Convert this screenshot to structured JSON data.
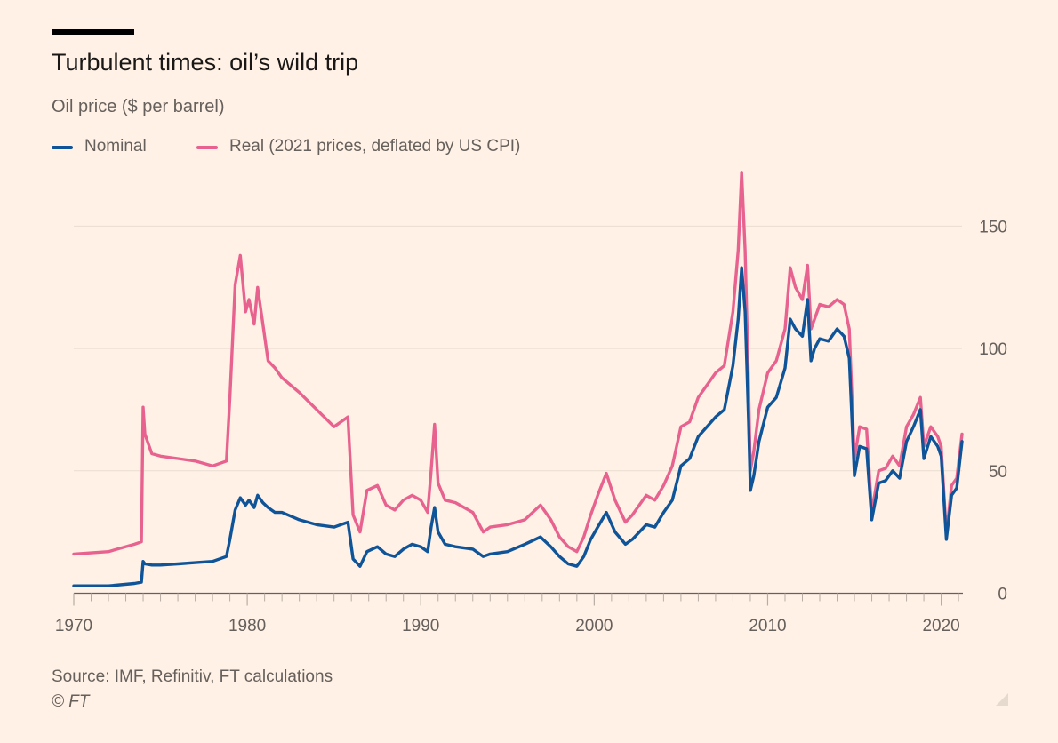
{
  "title": "Turbulent times: oil’s wild trip",
  "subtitle": "Oil price ($ per barrel)",
  "legend": [
    {
      "label": "Nominal",
      "color": "#0F5499"
    },
    {
      "label": "Real (2021 prices, deflated by US CPI)",
      "color": "#E8628F"
    }
  ],
  "source": "Source: IMF, Refinitiv, FT calculations",
  "copyright": "© FT",
  "chart_data": {
    "type": "line",
    "xlim": [
      1970,
      2021.2
    ],
    "ylim": [
      0,
      175
    ],
    "grid": true,
    "y_ticks": [
      0,
      50,
      100,
      150
    ],
    "x_ticks": [
      1970,
      1980,
      1990,
      2000,
      2010,
      2020
    ],
    "series": [
      {
        "name": "Nominal",
        "color": "#0F5499",
        "x": [
          1970,
          1972,
          1973.5,
          1973.9,
          1974.0,
          1974.1,
          1974.5,
          1975,
          1976,
          1977,
          1978,
          1978.8,
          1979.0,
          1979.3,
          1979.6,
          1979.9,
          1980.1,
          1980.4,
          1980.6,
          1980.9,
          1981.2,
          1981.6,
          1982,
          1983,
          1984,
          1985,
          1985.8,
          1986.1,
          1986.5,
          1986.9,
          1987.5,
          1988,
          1988.5,
          1989,
          1989.5,
          1990.0,
          1990.4,
          1990.6,
          1990.8,
          1991.0,
          1991.4,
          1992,
          1993,
          1993.6,
          1994,
          1995,
          1996,
          1996.9,
          1997.5,
          1998,
          1998.5,
          1999.0,
          1999.4,
          1999.8,
          2000.2,
          2000.7,
          2001.2,
          2001.8,
          2002.2,
          2003,
          2003.5,
          2004,
          2004.5,
          2005,
          2005.5,
          2006,
          2006.5,
          2007,
          2007.5,
          2008.0,
          2008.3,
          2008.5,
          2008.7,
          2008.9,
          2009.0,
          2009.2,
          2009.5,
          2010,
          2010.5,
          2011.0,
          2011.3,
          2011.6,
          2012.0,
          2012.3,
          2012.5,
          2012.7,
          2013,
          2013.5,
          2014,
          2014.4,
          2014.7,
          2015.0,
          2015.3,
          2015.7,
          2016.0,
          2016.4,
          2016.8,
          2017.2,
          2017.6,
          2018.0,
          2018.4,
          2018.8,
          2019.0,
          2019.4,
          2019.8,
          2020.0,
          2020.3,
          2020.6,
          2020.9,
          2021.2
        ],
        "values": [
          3,
          3,
          4,
          4.5,
          13,
          12,
          11.5,
          11.5,
          12,
          12.5,
          13,
          15,
          22,
          34,
          39,
          36,
          38,
          35,
          40,
          37,
          35,
          33,
          33,
          30,
          28,
          27,
          29,
          14,
          11,
          17,
          19,
          16,
          15,
          18,
          20,
          19,
          17,
          27,
          35,
          25,
          20,
          19,
          18,
          15,
          16,
          17,
          20,
          23,
          19,
          15,
          12,
          11,
          15,
          22,
          27,
          33,
          25,
          20,
          22,
          28,
          27,
          33,
          38,
          52,
          55,
          64,
          68,
          72,
          75,
          93,
          112,
          133,
          115,
          70,
          42,
          48,
          62,
          76,
          80,
          92,
          112,
          108,
          105,
          120,
          95,
          100,
          104,
          103,
          108,
          105,
          96,
          48,
          60,
          59,
          30,
          45,
          46,
          50,
          47,
          62,
          68,
          75,
          55,
          64,
          60,
          56,
          22,
          40,
          43,
          62
        ]
      },
      {
        "name": "Real (2021 prices, deflated by US CPI)",
        "color": "#E8628F",
        "x": [
          1970,
          1972,
          1973.5,
          1973.9,
          1974.0,
          1974.1,
          1974.5,
          1975,
          1976,
          1977,
          1978,
          1978.8,
          1979.0,
          1979.3,
          1979.6,
          1979.9,
          1980.1,
          1980.4,
          1980.6,
          1980.9,
          1981.2,
          1981.6,
          1982,
          1983,
          1984,
          1985,
          1985.8,
          1986.1,
          1986.5,
          1986.9,
          1987.5,
          1988,
          1988.5,
          1989,
          1989.5,
          1990.0,
          1990.4,
          1990.6,
          1990.8,
          1991.0,
          1991.4,
          1992,
          1993,
          1993.6,
          1994,
          1995,
          1996,
          1996.9,
          1997.5,
          1998,
          1998.5,
          1999.0,
          1999.4,
          1999.8,
          2000.2,
          2000.7,
          2001.2,
          2001.8,
          2002.2,
          2003,
          2003.5,
          2004,
          2004.5,
          2005,
          2005.5,
          2006,
          2006.5,
          2007,
          2007.5,
          2008.0,
          2008.3,
          2008.5,
          2008.7,
          2008.9,
          2009.0,
          2009.2,
          2009.5,
          2010,
          2010.5,
          2011.0,
          2011.3,
          2011.6,
          2012.0,
          2012.3,
          2012.5,
          2012.7,
          2013,
          2013.5,
          2014,
          2014.4,
          2014.7,
          2015.0,
          2015.3,
          2015.7,
          2016.0,
          2016.4,
          2016.8,
          2017.2,
          2017.6,
          2018.0,
          2018.4,
          2018.8,
          2019.0,
          2019.4,
          2019.8,
          2020.0,
          2020.3,
          2020.6,
          2020.9,
          2021.2
        ],
        "values": [
          16,
          17,
          20,
          21,
          76,
          65,
          57,
          56,
          55,
          54,
          52,
          54,
          80,
          126,
          138,
          115,
          120,
          110,
          125,
          110,
          95,
          92,
          88,
          82,
          75,
          68,
          72,
          32,
          25,
          42,
          44,
          36,
          34,
          38,
          40,
          38,
          33,
          50,
          69,
          45,
          38,
          37,
          33,
          25,
          27,
          28,
          30,
          36,
          30,
          23,
          19,
          17,
          23,
          32,
          40,
          49,
          38,
          29,
          32,
          40,
          38,
          44,
          52,
          68,
          70,
          80,
          85,
          90,
          93,
          115,
          140,
          172,
          140,
          85,
          50,
          58,
          75,
          90,
          95,
          108,
          133,
          125,
          120,
          134,
          108,
          112,
          118,
          117,
          120,
          118,
          108,
          55,
          68,
          67,
          33,
          50,
          51,
          56,
          52,
          68,
          73,
          80,
          60,
          68,
          64,
          60,
          24,
          44,
          47,
          65
        ]
      }
    ]
  }
}
